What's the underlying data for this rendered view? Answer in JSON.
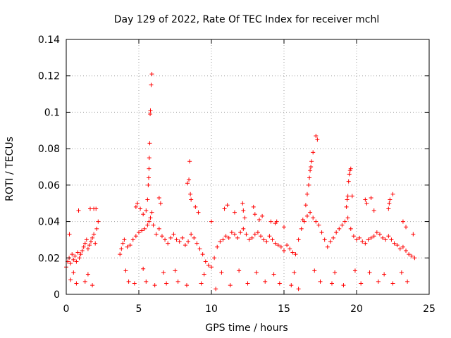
{
  "chart_data": {
    "type": "scatter",
    "title": "Day 129 of 2022, Rate Of TEC Index for receiver mchl",
    "xlabel": "GPS time / hours",
    "ylabel": "ROTI / TECUs",
    "xlim": [
      0,
      25
    ],
    "ylim": [
      0,
      0.14
    ],
    "xticks": [
      0,
      5,
      10,
      15,
      20,
      25
    ],
    "xtick_labels": [
      "0",
      "5",
      "10",
      "15",
      "20",
      "25"
    ],
    "yticks": [
      0,
      0.02,
      0.04,
      0.06,
      0.08,
      0.1,
      0.12,
      0.14
    ],
    "ytick_labels": [
      "0",
      "0.02",
      "0.04",
      "0.06",
      "0.08",
      "0.1",
      "0.12",
      "0.14"
    ],
    "grid": true,
    "marker": "+",
    "series": [
      {
        "name": "ROTI",
        "color": "#ff0000",
        "x": [
          0.0,
          0.1,
          0.2,
          0.3,
          0.4,
          0.5,
          0.6,
          0.7,
          0.8,
          0.9,
          1.0,
          1.1,
          1.2,
          1.3,
          1.4,
          1.5,
          1.6,
          1.7,
          1.8,
          1.9,
          2.0,
          2.1,
          2.2,
          0.22,
          0.85,
          1.65,
          1.9,
          2.05,
          3.7,
          3.8,
          3.9,
          4.0,
          4.2,
          4.4,
          4.6,
          4.8,
          5.0,
          5.2,
          5.4,
          5.6,
          5.7,
          5.8,
          5.9,
          6.0,
          6.2,
          6.4,
          6.6,
          6.8,
          7.0,
          7.2,
          7.4,
          7.6,
          7.8,
          8.0,
          8.2,
          8.4,
          8.6,
          8.8,
          9.0,
          9.2,
          9.4,
          9.6,
          9.8,
          10.0,
          10.2,
          10.4,
          10.6,
          10.8,
          11.0,
          11.2,
          11.4,
          11.6,
          11.8,
          12.0,
          12.2,
          12.4,
          12.6,
          12.8,
          13.0,
          13.2,
          13.4,
          13.6,
          13.8,
          14.0,
          14.2,
          14.4,
          14.6,
          14.8,
          15.0,
          15.2,
          15.4,
          15.6,
          15.8,
          16.0,
          16.2,
          16.4,
          16.6,
          16.8,
          17.0,
          17.2,
          17.4,
          17.6,
          17.8,
          18.0,
          18.2,
          18.4,
          18.6,
          18.8,
          19.0,
          19.2,
          19.4,
          19.6,
          19.8,
          20.0,
          20.2,
          20.4,
          20.6,
          20.8,
          21.0,
          21.2,
          21.4,
          21.6,
          21.8,
          22.0,
          22.2,
          22.4,
          22.6,
          22.8,
          23.0,
          23.2,
          23.4,
          23.6,
          23.8,
          24.0,
          4.8,
          4.9,
          5.1,
          5.3,
          5.5,
          5.6,
          5.65,
          5.68,
          5.7,
          5.72,
          5.75,
          5.78,
          5.8,
          5.85,
          5.9,
          6.4,
          6.5,
          8.35,
          8.45,
          8.5,
          8.55,
          8.6,
          8.9,
          9.1,
          10.0,
          10.9,
          11.1,
          11.6,
          12.15,
          12.2,
          12.3,
          12.9,
          13.0,
          13.3,
          13.5,
          14.1,
          14.4,
          14.5,
          15.0,
          16.3,
          16.5,
          16.6,
          16.7,
          16.75,
          16.8,
          16.85,
          16.9,
          17.0,
          17.2,
          17.3,
          19.3,
          19.35,
          19.4,
          19.45,
          19.5,
          19.55,
          19.6,
          19.7,
          20.6,
          20.7,
          21.0,
          21.2,
          22.2,
          22.25,
          22.3,
          22.5,
          23.2,
          23.4,
          23.9,
          0.3,
          0.7,
          1.3,
          1.8,
          4.3,
          4.7,
          5.5,
          6.1,
          6.9,
          7.7,
          8.3,
          9.3,
          10.3,
          11.3,
          12.5,
          13.7,
          14.7,
          15.5,
          16.0,
          17.5,
          18.3,
          19.1,
          20.3,
          21.5,
          22.5,
          23.5,
          0.5,
          1.5,
          4.1,
          5.3,
          6.7,
          7.5,
          9.5,
          10.7,
          11.9,
          13.1,
          14.3,
          15.7,
          17.1,
          18.5,
          19.9,
          20.9,
          21.9,
          23.1
        ],
        "y": [
          0.015,
          0.018,
          0.02,
          0.017,
          0.022,
          0.019,
          0.021,
          0.018,
          0.023,
          0.02,
          0.022,
          0.024,
          0.026,
          0.028,
          0.03,
          0.025,
          0.027,
          0.029,
          0.031,
          0.033,
          0.028,
          0.036,
          0.04,
          0.033,
          0.046,
          0.047,
          0.047,
          0.047,
          0.022,
          0.025,
          0.028,
          0.03,
          0.026,
          0.027,
          0.03,
          0.032,
          0.034,
          0.035,
          0.036,
          0.038,
          0.04,
          0.042,
          0.045,
          0.038,
          0.033,
          0.036,
          0.032,
          0.03,
          0.028,
          0.031,
          0.033,
          0.03,
          0.029,
          0.031,
          0.027,
          0.029,
          0.033,
          0.031,
          0.028,
          0.025,
          0.022,
          0.018,
          0.016,
          0.015,
          0.02,
          0.026,
          0.029,
          0.03,
          0.032,
          0.031,
          0.034,
          0.033,
          0.031,
          0.034,
          0.036,
          0.033,
          0.03,
          0.031,
          0.033,
          0.034,
          0.032,
          0.03,
          0.029,
          0.032,
          0.03,
          0.028,
          0.027,
          0.026,
          0.024,
          0.027,
          0.025,
          0.023,
          0.022,
          0.03,
          0.036,
          0.04,
          0.043,
          0.045,
          0.042,
          0.04,
          0.038,
          0.034,
          0.03,
          0.026,
          0.029,
          0.031,
          0.034,
          0.036,
          0.038,
          0.04,
          0.042,
          0.036,
          0.032,
          0.03,
          0.031,
          0.029,
          0.028,
          0.03,
          0.031,
          0.032,
          0.034,
          0.033,
          0.031,
          0.03,
          0.032,
          0.03,
          0.028,
          0.027,
          0.025,
          0.026,
          0.024,
          0.022,
          0.021,
          0.02,
          0.048,
          0.05,
          0.047,
          0.044,
          0.046,
          0.052,
          0.06,
          0.064,
          0.069,
          0.075,
          0.083,
          0.099,
          0.101,
          0.115,
          0.121,
          0.053,
          0.05,
          0.061,
          0.063,
          0.073,
          0.055,
          0.052,
          0.048,
          0.045,
          0.04,
          0.047,
          0.049,
          0.045,
          0.05,
          0.046,
          0.042,
          0.048,
          0.044,
          0.041,
          0.043,
          0.04,
          0.039,
          0.04,
          0.037,
          0.041,
          0.049,
          0.055,
          0.06,
          0.064,
          0.068,
          0.07,
          0.073,
          0.078,
          0.087,
          0.085,
          0.048,
          0.052,
          0.054,
          0.062,
          0.066,
          0.068,
          0.069,
          0.054,
          0.052,
          0.05,
          0.053,
          0.046,
          0.047,
          0.05,
          0.052,
          0.055,
          0.04,
          0.037,
          0.033,
          0.008,
          0.006,
          0.007,
          0.005,
          0.007,
          0.006,
          0.007,
          0.005,
          0.006,
          0.007,
          0.005,
          0.006,
          0.003,
          0.005,
          0.006,
          0.007,
          0.006,
          0.005,
          0.003,
          0.007,
          0.006,
          0.005,
          0.006,
          0.007,
          0.006,
          0.007,
          0.012,
          0.011,
          0.013,
          0.014,
          0.012,
          0.013,
          0.011,
          0.012,
          0.013,
          0.012,
          0.011,
          0.012,
          0.013,
          0.012,
          0.013,
          0.012,
          0.011,
          0.012
        ]
      }
    ]
  }
}
